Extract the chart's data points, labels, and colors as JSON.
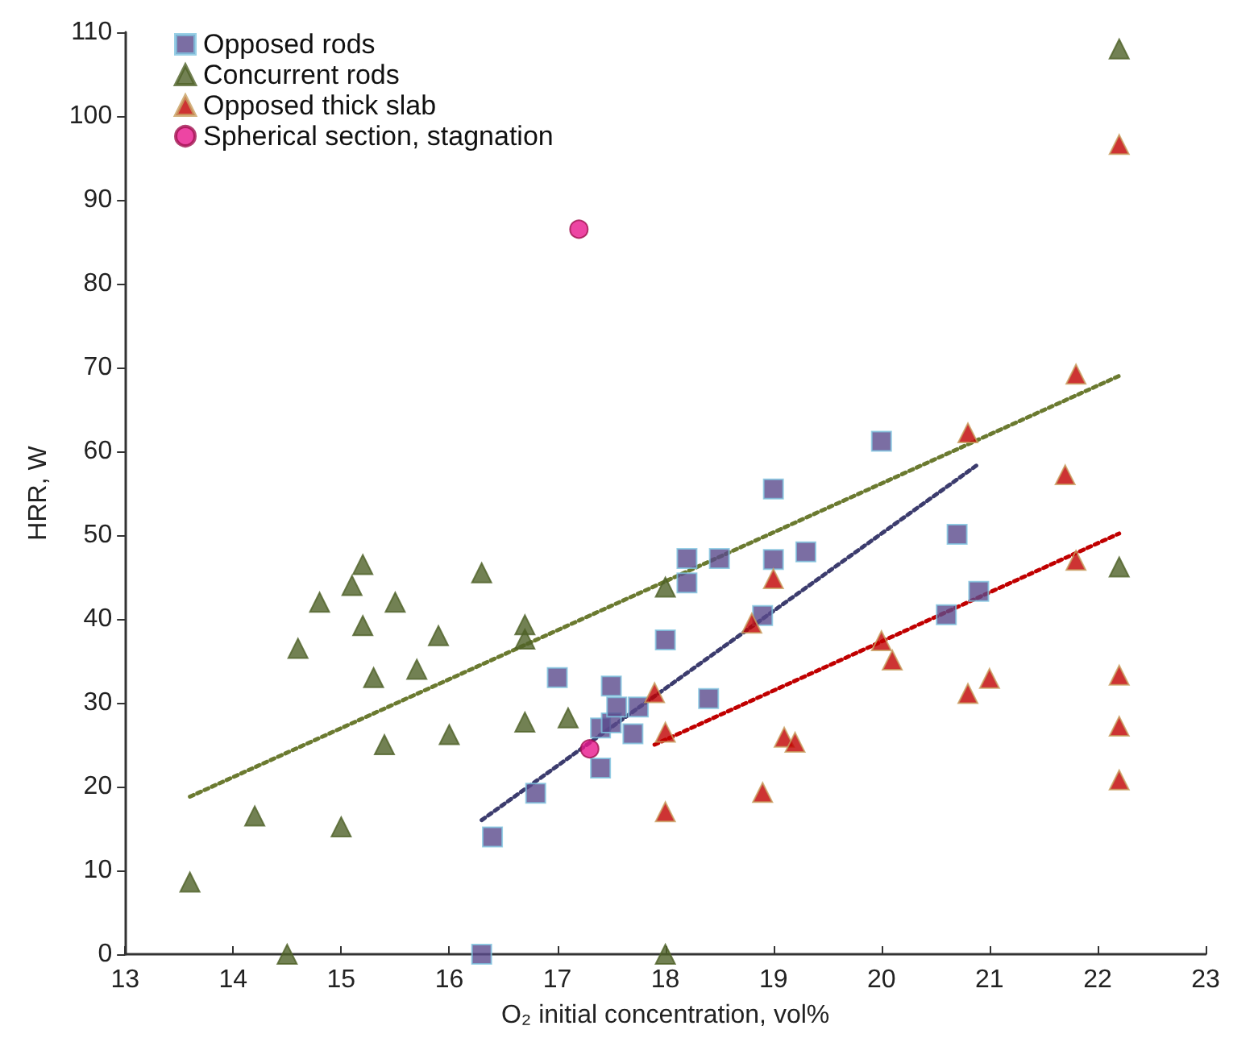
{
  "chart_data": {
    "type": "scatter",
    "xlabel": "O₂ initial concentration, vol%",
    "ylabel": "HRR, W",
    "xlim": [
      13,
      23
    ],
    "xticks": [
      13,
      14,
      15,
      16,
      17,
      18,
      19,
      20,
      21,
      22,
      23
    ],
    "ylim": [
      0,
      110
    ],
    "yticks": [
      0,
      10,
      20,
      30,
      40,
      50,
      60,
      70,
      80,
      90,
      100,
      110
    ],
    "grid": false,
    "legend": "top left",
    "series": [
      {
        "name": "Opposed rods",
        "color": "#5a4a8c",
        "marker": "square",
        "x": [
          16.3,
          16.4,
          16.8,
          17.0,
          17.4,
          17.4,
          17.5,
          17.5,
          17.55,
          17.75,
          17.7,
          18.0,
          18.2,
          18.2,
          18.4,
          18.5,
          18.9,
          19.0,
          19.0,
          19.3,
          20.0,
          20.6,
          20.7,
          20.9
        ],
        "values": [
          0,
          14,
          19.2,
          33,
          22.2,
          27,
          27.6,
          32,
          29.5,
          29.5,
          26.3,
          37.5,
          47.2,
          44.3,
          30.5,
          47.2,
          40.4,
          47.1,
          55.5,
          48,
          61.2,
          40.5,
          50.1,
          43.3
        ]
      },
      {
        "name": "Concurrent rods",
        "color": "#4f6228",
        "marker": "triangle",
        "x": [
          13.6,
          14.2,
          14.5,
          14.6,
          14.8,
          15.0,
          15.1,
          15.2,
          15.2,
          15.3,
          15.4,
          15.5,
          15.7,
          15.9,
          16.0,
          16.3,
          16.7,
          16.7,
          16.7,
          17.1,
          18.0,
          18.0,
          22.2,
          22.2
        ],
        "values": [
          8.6,
          16.5,
          0,
          36.5,
          42,
          15.2,
          44,
          46.5,
          39.2,
          33,
          25,
          42,
          34,
          38,
          26.2,
          45.5,
          39.3,
          37.6,
          27.7,
          28.2,
          43.8,
          0,
          108,
          46.2
        ]
      },
      {
        "name": "Opposed thick slab",
        "color": "#c00000",
        "marker": "triangle",
        "x": [
          17.9,
          18.0,
          18.0,
          18.8,
          18.9,
          19.0,
          19.1,
          19.2,
          20.0,
          20.1,
          20.8,
          20.8,
          21.0,
          21.7,
          21.8,
          21.8,
          22.2,
          22.2,
          22.2,
          22.2
        ],
        "values": [
          31.2,
          26.5,
          17,
          39.5,
          19.3,
          44.8,
          25.9,
          25.3,
          37.4,
          35.1,
          62.2,
          31.1,
          32.9,
          57.2,
          69.2,
          47,
          96.6,
          33.3,
          27.2,
          20.8
        ]
      },
      {
        "name": "Spherical section, stagnation",
        "color": "#e8168c",
        "marker": "circle",
        "x": [
          17.2,
          17.3
        ],
        "values": [
          86.5,
          24.5
        ]
      },
      {
        "type": "line",
        "color": "#6b7a30",
        "marker": "none",
        "line_style": "dotted",
        "x": [
          13.6,
          22.2
        ],
        "values": [
          18.8,
          69
        ]
      },
      {
        "type": "line",
        "color": "#3c3c6e",
        "marker": "none",
        "line_style": "dotted",
        "x": [
          16.3,
          20.9
        ],
        "values": [
          16,
          58.5
        ]
      },
      {
        "type": "line",
        "color": "#c00000",
        "marker": "none",
        "line_style": "dotted",
        "x": [
          17.9,
          22.2
        ],
        "values": [
          25,
          50.2
        ]
      }
    ]
  }
}
